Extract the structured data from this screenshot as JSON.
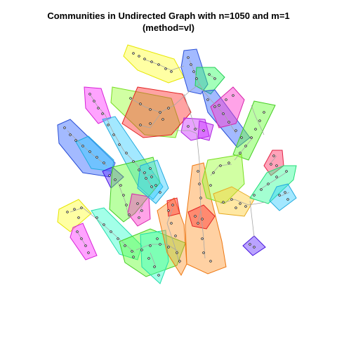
{
  "title_line1": "Communities in Undirected Graph with n=1050 and m=1",
  "title_line2": "(method=vl)",
  "diagram": {
    "type": "community-graph",
    "hull_opacity": 0.45,
    "edge_color": "#a6a6a6",
    "vertex_color": "#ffffff",
    "vertex_border": "#000000"
  }
}
